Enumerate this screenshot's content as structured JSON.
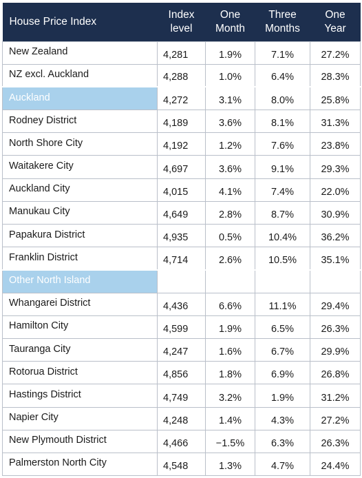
{
  "header": {
    "label": "House Price Index",
    "col_index_1": "Index",
    "col_index_2": "level",
    "col_month_1": "One",
    "col_month_2": "Month",
    "col_three_1": "Three",
    "col_three_2": "Months",
    "col_year_1": "One",
    "col_year_2": "Year"
  },
  "rows": [
    {
      "name": "New Zealand",
      "index": "4,281",
      "month": "1.9%",
      "three": "7.1%",
      "year": "27.2%"
    },
    {
      "name": "NZ excl. Auckland",
      "index": "4,288",
      "month": "1.0%",
      "three": "6.4%",
      "year": "28.3%"
    },
    {
      "name": "Auckland",
      "index": "4,272",
      "month": "3.1%",
      "three": "8.0%",
      "year": "25.8%"
    },
    {
      "name": "Rodney District",
      "index": "4,189",
      "month": "3.6%",
      "three": "8.1%",
      "year": "31.3%"
    },
    {
      "name": "North Shore City",
      "index": "4,192",
      "month": "1.2%",
      "three": "7.6%",
      "year": "23.8%"
    },
    {
      "name": "Waitakere City",
      "index": "4,697",
      "month": "3.6%",
      "three": "9.1%",
      "year": "29.3%"
    },
    {
      "name": "Auckland City",
      "index": "4,015",
      "month": "4.1%",
      "three": "7.4%",
      "year": "22.0%"
    },
    {
      "name": "Manukau City",
      "index": "4,649",
      "month": "2.8%",
      "three": "8.7%",
      "year": "30.9%"
    },
    {
      "name": "Papakura District",
      "index": "4,935",
      "month": "0.5%",
      "three": "10.4%",
      "year": "36.2%"
    },
    {
      "name": "Franklin District",
      "index": "4,714",
      "month": "2.6%",
      "three": "10.5%",
      "year": "35.1%"
    },
    {
      "name": "Other North Island",
      "index": "",
      "month": "",
      "three": "",
      "year": ""
    },
    {
      "name": "Whangarei District",
      "index": "4,436",
      "month": "6.6%",
      "three": "11.1%",
      "year": "29.4%"
    },
    {
      "name": "Hamilton City",
      "index": "4,599",
      "month": "1.9%",
      "three": "6.5%",
      "year": "26.3%"
    },
    {
      "name": "Tauranga City",
      "index": "4,247",
      "month": "1.6%",
      "three": "6.7%",
      "year": "29.9%"
    },
    {
      "name": "Rotorua District",
      "index": "4,856",
      "month": "1.8%",
      "three": "6.9%",
      "year": "26.8%"
    },
    {
      "name": "Hastings District",
      "index": "4,749",
      "month": "3.2%",
      "three": "1.9%",
      "year": "31.2%"
    },
    {
      "name": "Napier City",
      "index": "4,248",
      "month": "1.4%",
      "three": "4.3%",
      "year": "27.2%"
    },
    {
      "name": "New Plymouth District",
      "index": "4,466",
      "month": "−1.5%",
      "three": "6.3%",
      "year": "26.3%"
    },
    {
      "name": "Palmerston North City",
      "index": "4,548",
      "month": "1.3%",
      "three": "4.7%",
      "year": "24.4%"
    }
  ]
}
